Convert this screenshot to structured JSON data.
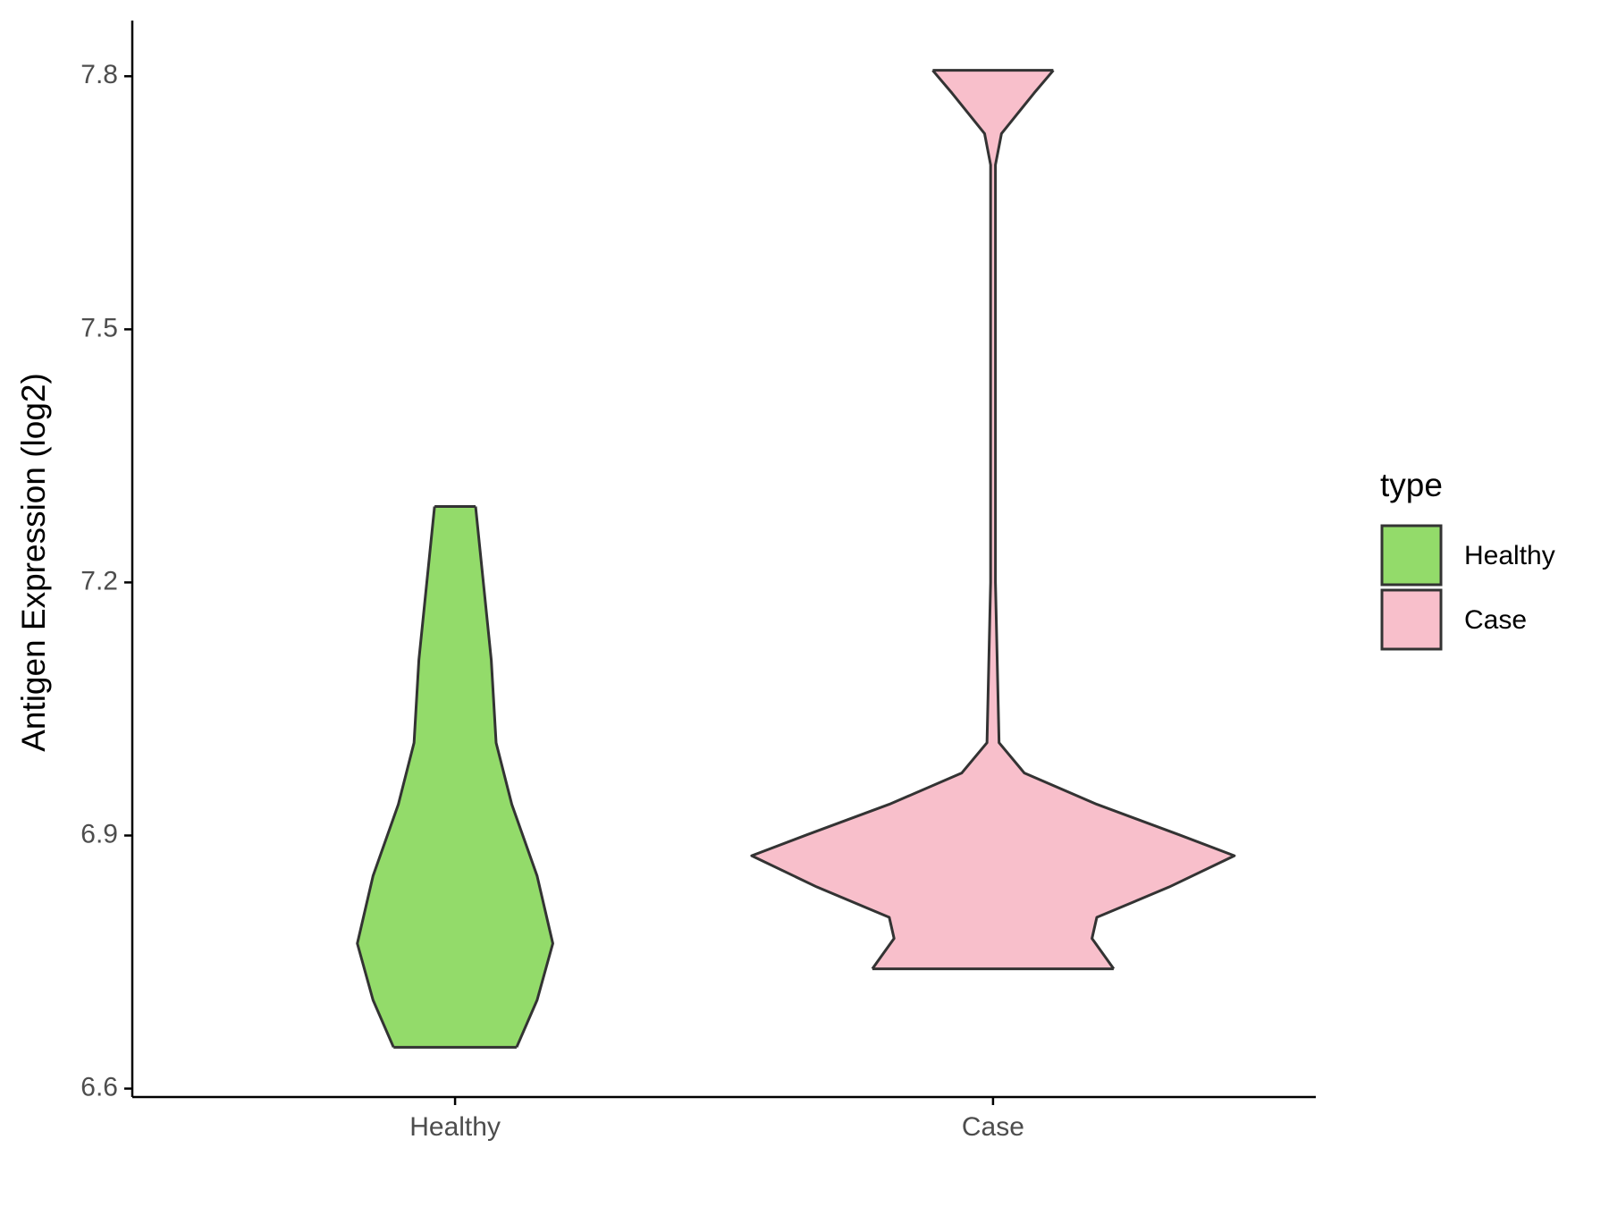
{
  "chart_data": {
    "type": "violin",
    "y_label": "Antigen Expression (log2)",
    "categories": [
      "Healthy",
      "Case"
    ],
    "legend_title": "type",
    "legend_position": "right",
    "ylim": [
      6.59,
      7.866
    ],
    "yticks": [
      6.6,
      6.9,
      7.2,
      7.5,
      7.8
    ],
    "series": [
      {
        "name": "Healthy",
        "color": "#93db6a",
        "y": [
          7.29,
          7.206,
          7.108,
          7.01,
          6.937,
          6.852,
          6.772,
          6.705,
          6.649
        ],
        "density": [
          0.085,
          0.115,
          0.15,
          0.17,
          0.235,
          0.34,
          0.405,
          0.34,
          0.255
        ]
      },
      {
        "name": "Case",
        "color": "#f8bfcb",
        "y": [
          7.807,
          7.78,
          7.732,
          7.695,
          7.2,
          7.01,
          6.974,
          6.937,
          6.901,
          6.876,
          6.839,
          6.803,
          6.778,
          6.754,
          6.742
        ],
        "density": [
          0.25,
          0.17,
          0.035,
          0.01,
          0.01,
          0.025,
          0.13,
          0.43,
          0.77,
          1,
          0.73,
          0.43,
          0.41,
          0.47,
          0.5
        ]
      }
    ]
  }
}
